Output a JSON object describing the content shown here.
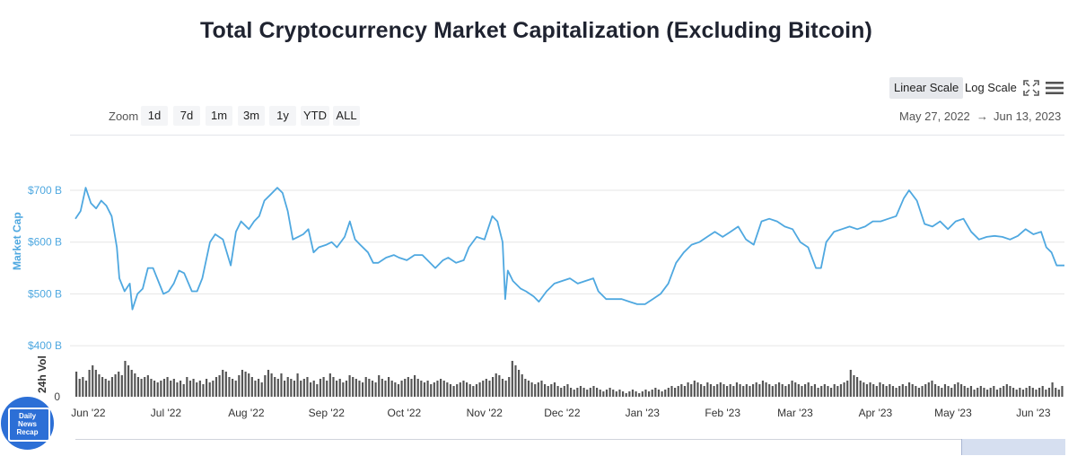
{
  "title": "Total Cryptocurrency Market Capitalization (Excluding Bitcoin)",
  "toolbar": {
    "linear_label": "Linear Scale",
    "log_label": "Log Scale",
    "zoom_label": "Zoom",
    "zoom_options": [
      "1d",
      "7d",
      "1m",
      "3m",
      "1y",
      "YTD",
      "ALL"
    ],
    "range_from": "May 27, 2022",
    "range_arrow": "→",
    "range_to": "Jun 13, 2023"
  },
  "logo": {
    "lines": [
      "Daily",
      "News",
      "Recap"
    ]
  },
  "colors": {
    "line": "#4fa8e0",
    "volume": "#555555",
    "grid": "#e6e6e6",
    "title": "#1f2330"
  },
  "chart_data": {
    "type": "line",
    "title": "Total Cryptocurrency Market Capitalization (Excluding Bitcoin)",
    "ylabel": "Market Cap",
    "volume_label": "24h Vol",
    "ylim": [
      400,
      800
    ],
    "y_ticks": [
      {
        "value": 500,
        "label": "$500 B"
      },
      {
        "value": 600,
        "label": "$600 B"
      },
      {
        "value": 700,
        "label": "$700 B"
      },
      {
        "value": 400,
        "label": "$400 B"
      }
    ],
    "volume_tick": "0",
    "x_start": "2022-05-27",
    "x_end": "2023-06-13",
    "x_ticks": [
      {
        "date": "2022-06-01",
        "label": "Jun '22"
      },
      {
        "date": "2022-07-01",
        "label": "Jul '22"
      },
      {
        "date": "2022-08-01",
        "label": "Aug '22"
      },
      {
        "date": "2022-09-01",
        "label": "Sep '22"
      },
      {
        "date": "2022-10-01",
        "label": "Oct '22"
      },
      {
        "date": "2022-11-01",
        "label": "Nov '22"
      },
      {
        "date": "2022-12-01",
        "label": "Dec '22"
      },
      {
        "date": "2023-01-01",
        "label": "Jan '23"
      },
      {
        "date": "2023-02-01",
        "label": "Feb '23"
      },
      {
        "date": "2023-03-01",
        "label": "Mar '23"
      },
      {
        "date": "2023-04-01",
        "label": "Apr '23"
      },
      {
        "date": "2023-05-01",
        "label": "May '23"
      },
      {
        "date": "2023-06-01",
        "label": "Jun '23"
      }
    ],
    "series": [
      {
        "name": "Market Cap ($B)",
        "points": [
          [
            "2022-05-27",
            645
          ],
          [
            "2022-05-29",
            660
          ],
          [
            "2022-05-31",
            705
          ],
          [
            "2022-06-02",
            675
          ],
          [
            "2022-06-04",
            665
          ],
          [
            "2022-06-06",
            680
          ],
          [
            "2022-06-08",
            670
          ],
          [
            "2022-06-10",
            650
          ],
          [
            "2022-06-12",
            590
          ],
          [
            "2022-06-13",
            530
          ],
          [
            "2022-06-15",
            505
          ],
          [
            "2022-06-17",
            520
          ],
          [
            "2022-06-18",
            470
          ],
          [
            "2022-06-20",
            500
          ],
          [
            "2022-06-22",
            510
          ],
          [
            "2022-06-24",
            550
          ],
          [
            "2022-06-26",
            550
          ],
          [
            "2022-06-28",
            525
          ],
          [
            "2022-06-30",
            500
          ],
          [
            "2022-07-02",
            505
          ],
          [
            "2022-07-04",
            520
          ],
          [
            "2022-07-06",
            545
          ],
          [
            "2022-07-08",
            540
          ],
          [
            "2022-07-11",
            505
          ],
          [
            "2022-07-13",
            505
          ],
          [
            "2022-07-15",
            530
          ],
          [
            "2022-07-18",
            600
          ],
          [
            "2022-07-20",
            615
          ],
          [
            "2022-07-23",
            605
          ],
          [
            "2022-07-26",
            555
          ],
          [
            "2022-07-28",
            620
          ],
          [
            "2022-07-30",
            640
          ],
          [
            "2022-08-02",
            625
          ],
          [
            "2022-08-04",
            640
          ],
          [
            "2022-08-06",
            650
          ],
          [
            "2022-08-08",
            680
          ],
          [
            "2022-08-10",
            690
          ],
          [
            "2022-08-13",
            705
          ],
          [
            "2022-08-15",
            695
          ],
          [
            "2022-08-17",
            660
          ],
          [
            "2022-08-19",
            605
          ],
          [
            "2022-08-21",
            610
          ],
          [
            "2022-08-23",
            615
          ],
          [
            "2022-08-25",
            625
          ],
          [
            "2022-08-27",
            580
          ],
          [
            "2022-08-29",
            590
          ],
          [
            "2022-09-01",
            595
          ],
          [
            "2022-09-03",
            600
          ],
          [
            "2022-09-05",
            590
          ],
          [
            "2022-09-08",
            610
          ],
          [
            "2022-09-10",
            640
          ],
          [
            "2022-09-12",
            605
          ],
          [
            "2022-09-14",
            595
          ],
          [
            "2022-09-17",
            580
          ],
          [
            "2022-09-19",
            560
          ],
          [
            "2022-09-21",
            560
          ],
          [
            "2022-09-24",
            570
          ],
          [
            "2022-09-27",
            575
          ],
          [
            "2022-09-29",
            570
          ],
          [
            "2022-10-02",
            565
          ],
          [
            "2022-10-05",
            575
          ],
          [
            "2022-10-08",
            575
          ],
          [
            "2022-10-11",
            560
          ],
          [
            "2022-10-13",
            550
          ],
          [
            "2022-10-16",
            565
          ],
          [
            "2022-10-18",
            570
          ],
          [
            "2022-10-21",
            560
          ],
          [
            "2022-10-24",
            565
          ],
          [
            "2022-10-26",
            590
          ],
          [
            "2022-10-29",
            610
          ],
          [
            "2022-11-01",
            605
          ],
          [
            "2022-11-04",
            650
          ],
          [
            "2022-11-06",
            640
          ],
          [
            "2022-11-08",
            600
          ],
          [
            "2022-11-09",
            490
          ],
          [
            "2022-11-10",
            545
          ],
          [
            "2022-11-12",
            525
          ],
          [
            "2022-11-15",
            510
          ],
          [
            "2022-11-17",
            505
          ],
          [
            "2022-11-20",
            495
          ],
          [
            "2022-11-22",
            485
          ],
          [
            "2022-11-25",
            505
          ],
          [
            "2022-11-28",
            520
          ],
          [
            "2022-12-01",
            525
          ],
          [
            "2022-12-04",
            530
          ],
          [
            "2022-12-07",
            520
          ],
          [
            "2022-12-10",
            525
          ],
          [
            "2022-12-13",
            530
          ],
          [
            "2022-12-15",
            505
          ],
          [
            "2022-12-18",
            490
          ],
          [
            "2022-12-21",
            490
          ],
          [
            "2022-12-24",
            490
          ],
          [
            "2022-12-27",
            485
          ],
          [
            "2022-12-30",
            480
          ],
          [
            "2023-01-02",
            480
          ],
          [
            "2023-01-05",
            490
          ],
          [
            "2023-01-08",
            500
          ],
          [
            "2023-01-11",
            520
          ],
          [
            "2023-01-14",
            560
          ],
          [
            "2023-01-17",
            580
          ],
          [
            "2023-01-20",
            595
          ],
          [
            "2023-01-23",
            600
          ],
          [
            "2023-01-26",
            610
          ],
          [
            "2023-01-29",
            620
          ],
          [
            "2023-02-01",
            610
          ],
          [
            "2023-02-04",
            620
          ],
          [
            "2023-02-07",
            630
          ],
          [
            "2023-02-10",
            605
          ],
          [
            "2023-02-13",
            595
          ],
          [
            "2023-02-16",
            640
          ],
          [
            "2023-02-19",
            645
          ],
          [
            "2023-02-22",
            640
          ],
          [
            "2023-02-25",
            630
          ],
          [
            "2023-02-28",
            625
          ],
          [
            "2023-03-03",
            600
          ],
          [
            "2023-03-06",
            590
          ],
          [
            "2023-03-09",
            550
          ],
          [
            "2023-03-11",
            550
          ],
          [
            "2023-03-13",
            600
          ],
          [
            "2023-03-16",
            620
          ],
          [
            "2023-03-19",
            625
          ],
          [
            "2023-03-22",
            630
          ],
          [
            "2023-03-25",
            625
          ],
          [
            "2023-03-28",
            630
          ],
          [
            "2023-03-31",
            640
          ],
          [
            "2023-04-03",
            640
          ],
          [
            "2023-04-06",
            645
          ],
          [
            "2023-04-09",
            650
          ],
          [
            "2023-04-12",
            685
          ],
          [
            "2023-04-14",
            700
          ],
          [
            "2023-04-17",
            680
          ],
          [
            "2023-04-20",
            635
          ],
          [
            "2023-04-23",
            630
          ],
          [
            "2023-04-26",
            640
          ],
          [
            "2023-04-29",
            625
          ],
          [
            "2023-05-02",
            640
          ],
          [
            "2023-05-05",
            645
          ],
          [
            "2023-05-08",
            620
          ],
          [
            "2023-05-11",
            605
          ],
          [
            "2023-05-14",
            610
          ],
          [
            "2023-05-17",
            612
          ],
          [
            "2023-05-20",
            610
          ],
          [
            "2023-05-23",
            605
          ],
          [
            "2023-05-26",
            612
          ],
          [
            "2023-05-29",
            625
          ],
          [
            "2023-06-01",
            615
          ],
          [
            "2023-06-04",
            620
          ],
          [
            "2023-06-06",
            590
          ],
          [
            "2023-06-08",
            580
          ],
          [
            "2023-06-10",
            555
          ],
          [
            "2023-06-13",
            555
          ]
        ]
      },
      {
        "name": "24h Vol ($B)",
        "volume_max": 50,
        "values": [
          28,
          20,
          22,
          18,
          30,
          35,
          30,
          25,
          22,
          20,
          18,
          22,
          25,
          28,
          24,
          40,
          35,
          30,
          26,
          22,
          20,
          22,
          24,
          20,
          18,
          16,
          18,
          20,
          22,
          18,
          20,
          16,
          18,
          14,
          22,
          18,
          20,
          16,
          18,
          14,
          20,
          16,
          18,
          22,
          24,
          30,
          28,
          22,
          20,
          18,
          24,
          30,
          28,
          26,
          22,
          18,
          20,
          16,
          24,
          30,
          26,
          22,
          20,
          26,
          18,
          22,
          20,
          18,
          26,
          18,
          20,
          22,
          16,
          18,
          14,
          20,
          22,
          18,
          26,
          22,
          18,
          20,
          16,
          18,
          24,
          22,
          20,
          18,
          16,
          22,
          20,
          18,
          16,
          24,
          20,
          18,
          22,
          18,
          16,
          14,
          18,
          20,
          22,
          20,
          24,
          20,
          18,
          16,
          18,
          14,
          16,
          18,
          20,
          18,
          16,
          14,
          12,
          14,
          16,
          18,
          16,
          14,
          12,
          14,
          16,
          18,
          20,
          18,
          22,
          26,
          24,
          20,
          18,
          22,
          40,
          35,
          30,
          25,
          20,
          18,
          16,
          14,
          16,
          18,
          14,
          12,
          14,
          16,
          12,
          10,
          12,
          14,
          10,
          8,
          10,
          12,
          10,
          8,
          10,
          12,
          10,
          8,
          6,
          8,
          10,
          8,
          6,
          8,
          6,
          4,
          6,
          8,
          6,
          4,
          6,
          8,
          6,
          8,
          10,
          8,
          6,
          8,
          10,
          12,
          10,
          12,
          14,
          12,
          16,
          14,
          18,
          16,
          14,
          12,
          16,
          14,
          12,
          14,
          16,
          14,
          12,
          14,
          12,
          16,
          14,
          12,
          14,
          12,
          14,
          16,
          14,
          18,
          16,
          14,
          12,
          14,
          16,
          14,
          12,
          14,
          18,
          16,
          14,
          12,
          14,
          16,
          12,
          14,
          10,
          12,
          14,
          12,
          10,
          14,
          12,
          14,
          16,
          18,
          30,
          24,
          22,
          18,
          16,
          14,
          16,
          14,
          12,
          16,
          14,
          12,
          14,
          12,
          10,
          12,
          14,
          12,
          16,
          14,
          12,
          10,
          12,
          14,
          16,
          18,
          14,
          12,
          10,
          14,
          12,
          10,
          14,
          16,
          14,
          12,
          10,
          12,
          8,
          10,
          12,
          10,
          8,
          10,
          12,
          8,
          10,
          12,
          14,
          12,
          10,
          8,
          10,
          8,
          10,
          12,
          10,
          8,
          10,
          12,
          8,
          10,
          16,
          10,
          8,
          12
        ]
      }
    ]
  }
}
